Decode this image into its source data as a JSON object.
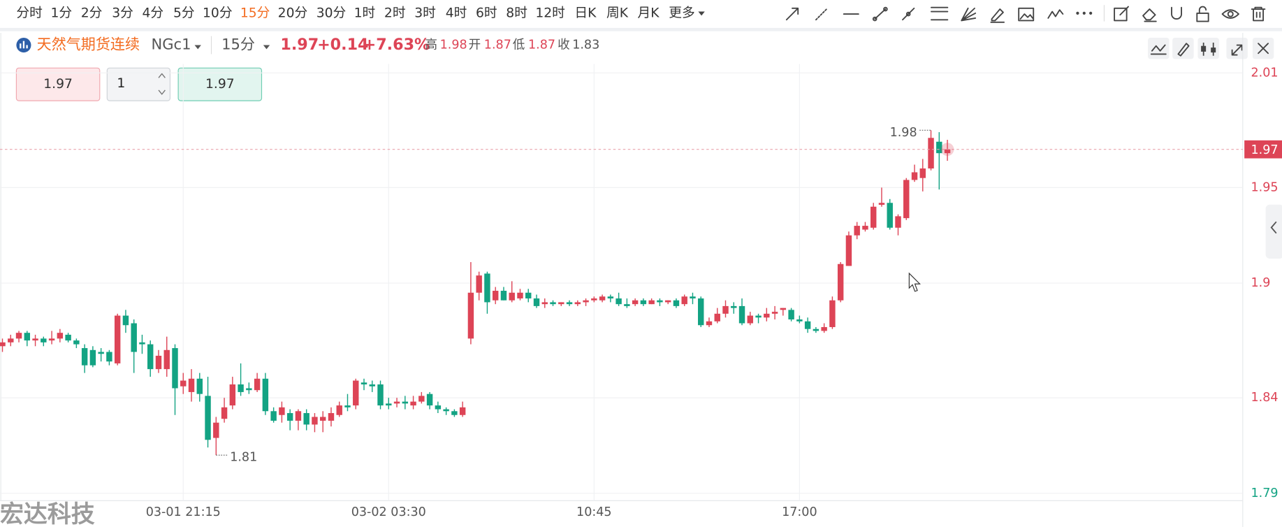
{
  "toolbar": {
    "intervals": [
      {
        "label": "分时"
      },
      {
        "label": "1分"
      },
      {
        "label": "2分"
      },
      {
        "label": "3分"
      },
      {
        "label": "4分"
      },
      {
        "label": "5分"
      },
      {
        "label": "10分"
      },
      {
        "label": "15分",
        "selected": true
      },
      {
        "label": "20分"
      },
      {
        "label": "30分"
      },
      {
        "label": "1时"
      },
      {
        "label": "2时"
      },
      {
        "label": "3时"
      },
      {
        "label": "4时"
      },
      {
        "label": "6时"
      },
      {
        "label": "8时"
      },
      {
        "label": "12时"
      },
      {
        "label": "日K"
      },
      {
        "label": "周K"
      },
      {
        "label": "月K"
      },
      {
        "label": "更多"
      }
    ]
  },
  "header": {
    "name": "天然气期货连续",
    "symbol": "NGc1",
    "timeframe": "15分",
    "price": 1.97,
    "change": "+0.14",
    "change_pct": "+7.63%",
    "stats": [
      {
        "label": "高",
        "value": 1.98
      },
      {
        "label": "开",
        "value": 1.87
      },
      {
        "label": "低",
        "value": 1.87
      },
      {
        "label": "收",
        "value": 1.83
      }
    ]
  },
  "order": {
    "sell_price": 1.97,
    "quantity": 1,
    "buy_price": 1.97
  },
  "watermark": "宏达科技",
  "chart_data": {
    "type": "candlestick",
    "up_color": "#dd4456",
    "down_color": "#13a383",
    "ylim": [
      1.79,
      2.01
    ],
    "yticks": [
      2.01,
      1.95,
      1.9,
      1.84,
      1.79
    ],
    "grid": true,
    "categories": [
      null,
      null,
      null,
      null,
      null,
      null,
      null,
      null,
      null,
      null,
      null,
      null,
      null,
      null,
      null,
      null,
      null,
      null,
      null,
      null,
      null,
      null,
      "03-01 21:15",
      null,
      null,
      null,
      null,
      null,
      null,
      null,
      null,
      null,
      null,
      null,
      null,
      null,
      null,
      null,
      null,
      null,
      null,
      null,
      null,
      null,
      null,
      null,
      null,
      "03-02 03:30",
      null,
      null,
      null,
      null,
      null,
      null,
      null,
      null,
      null,
      null,
      null,
      null,
      null,
      null,
      null,
      null,
      null,
      null,
      null,
      null,
      null,
      null,
      null,
      null,
      "10:45",
      null,
      null,
      null,
      null,
      null,
      null,
      null,
      null,
      null,
      null,
      null,
      null,
      null,
      null,
      null,
      null,
      null,
      null,
      null,
      null,
      null,
      null,
      null,
      null,
      "17:00",
      null,
      null,
      null,
      null,
      null,
      null,
      null,
      null,
      null,
      null,
      null,
      null,
      null,
      null,
      null,
      null,
      null,
      null
    ],
    "open": [
      1.867,
      1.869,
      1.871,
      1.874,
      1.87,
      1.871,
      1.87,
      1.871,
      1.873,
      1.87,
      1.866,
      1.865,
      1.864,
      1.864,
      1.858,
      1.883,
      1.879,
      1.869,
      1.868,
      1.855,
      1.855,
      1.866,
      1.846,
      1.843,
      1.85,
      1.841,
      1.819,
      1.829,
      1.836,
      1.847,
      1.845,
      1.844,
      1.85,
      1.833,
      1.831,
      1.832,
      1.828,
      1.832,
      1.826,
      1.828,
      1.828,
      1.831,
      1.836,
      1.836,
      1.848,
      1.847,
      1.847,
      1.837,
      1.837,
      1.838,
      1.836,
      1.838,
      1.842,
      1.836,
      1.834,
      1.833,
      1.831,
      1.871,
      1.895,
      1.905,
      1.891,
      1.896,
      1.891,
      1.892,
      1.895,
      1.892,
      1.889,
      1.89,
      1.889,
      1.89,
      1.889,
      1.89,
      1.891,
      1.891,
      1.893,
      1.892,
      1.889,
      1.889,
      1.891,
      1.889,
      1.891,
      1.89,
      1.891,
      1.889,
      1.893,
      1.892,
      1.878,
      1.88,
      1.884,
      1.888,
      1.888,
      1.879,
      1.883,
      1.882,
      1.884,
      1.886,
      1.886,
      1.881,
      1.88,
      1.876,
      1.875,
      1.877,
      1.891,
      1.909,
      1.925,
      1.928,
      1.929,
      1.941,
      1.942,
      1.929,
      1.934,
      1.954,
      1.955,
      1.96,
      1.974,
      1.968
    ],
    "high": [
      1.871,
      1.873,
      1.875,
      1.875,
      1.873,
      1.872,
      1.875,
      1.876,
      1.874,
      1.871,
      1.868,
      1.867,
      1.866,
      1.865,
      1.884,
      1.886,
      1.881,
      1.873,
      1.87,
      1.865,
      1.872,
      1.868,
      1.853,
      1.855,
      1.853,
      1.851,
      1.83,
      1.84,
      1.851,
      1.858,
      1.848,
      1.853,
      1.853,
      1.835,
      1.838,
      1.834,
      1.834,
      1.834,
      1.832,
      1.833,
      1.835,
      1.838,
      1.842,
      1.85,
      1.85,
      1.849,
      1.849,
      1.84,
      1.84,
      1.841,
      1.841,
      1.843,
      1.843,
      1.838,
      1.835,
      1.834,
      1.838,
      1.911,
      1.906,
      1.906,
      1.898,
      1.898,
      1.901,
      1.897,
      1.897,
      1.894,
      1.892,
      1.891,
      1.89,
      1.891,
      1.891,
      1.892,
      1.893,
      1.894,
      1.894,
      1.895,
      1.892,
      1.892,
      1.892,
      1.892,
      1.892,
      1.891,
      1.892,
      1.894,
      1.895,
      1.893,
      1.882,
      1.887,
      1.891,
      1.89,
      1.892,
      1.885,
      1.884,
      1.887,
      1.888,
      1.887,
      1.887,
      1.883,
      1.882,
      1.877,
      1.879,
      1.893,
      1.911,
      1.927,
      1.932,
      1.932,
      1.942,
      1.95,
      1.944,
      1.936,
      1.955,
      1.962,
      1.965,
      1.98,
      1.979,
      1.975
    ],
    "low": [
      1.864,
      1.867,
      1.869,
      1.867,
      1.867,
      1.867,
      1.868,
      1.869,
      1.869,
      1.866,
      1.853,
      1.856,
      1.859,
      1.857,
      1.857,
      1.874,
      1.853,
      1.863,
      1.851,
      1.853,
      1.851,
      1.831,
      1.842,
      1.838,
      1.838,
      1.814,
      1.81,
      1.827,
      1.834,
      1.841,
      1.842,
      1.843,
      1.831,
      1.827,
      1.827,
      1.823,
      1.823,
      1.823,
      1.822,
      1.822,
      1.825,
      1.83,
      1.833,
      1.834,
      1.844,
      1.843,
      1.834,
      1.834,
      1.835,
      1.834,
      1.834,
      1.837,
      1.834,
      1.832,
      1.831,
      1.83,
      1.83,
      1.868,
      1.891,
      1.884,
      1.889,
      1.891,
      1.89,
      1.891,
      1.89,
      1.887,
      1.887,
      1.888,
      1.888,
      1.888,
      1.888,
      1.888,
      1.89,
      1.89,
      1.89,
      1.888,
      1.887,
      1.888,
      1.888,
      1.889,
      1.888,
      1.889,
      1.887,
      1.888,
      1.889,
      1.877,
      1.877,
      1.879,
      1.882,
      1.884,
      1.878,
      1.878,
      1.879,
      1.88,
      1.881,
      1.883,
      1.88,
      1.879,
      1.874,
      1.874,
      1.874,
      1.876,
      1.89,
      1.909,
      1.923,
      1.927,
      1.928,
      1.94,
      1.928,
      1.925,
      1.933,
      1.953,
      1.948,
      1.959,
      1.949,
      1.964
    ],
    "close": [
      1.869,
      1.871,
      1.874,
      1.87,
      1.871,
      1.869,
      1.871,
      1.874,
      1.87,
      1.868,
      1.857,
      1.857,
      1.863,
      1.859,
      1.883,
      1.878,
      1.864,
      1.868,
      1.855,
      1.862,
      1.865,
      1.845,
      1.849,
      1.85,
      1.842,
      1.818,
      1.827,
      1.835,
      1.847,
      1.843,
      1.844,
      1.85,
      1.833,
      1.828,
      1.835,
      1.828,
      1.833,
      1.826,
      1.83,
      1.83,
      1.832,
      1.836,
      1.835,
      1.849,
      1.847,
      1.846,
      1.836,
      1.836,
      1.838,
      1.837,
      1.838,
      1.841,
      1.836,
      1.834,
      1.833,
      1.831,
      1.835,
      1.895,
      1.904,
      1.89,
      1.896,
      1.891,
      1.895,
      1.895,
      1.892,
      1.888,
      1.89,
      1.889,
      1.89,
      1.889,
      1.89,
      1.891,
      1.892,
      1.893,
      1.892,
      1.889,
      1.888,
      1.891,
      1.889,
      1.891,
      1.89,
      1.891,
      1.888,
      1.893,
      1.892,
      1.878,
      1.88,
      1.884,
      1.888,
      1.887,
      1.879,
      1.883,
      1.882,
      1.884,
      1.885,
      1.887,
      1.881,
      1.88,
      1.876,
      1.875,
      1.877,
      1.891,
      1.91,
      1.925,
      1.93,
      1.93,
      1.94,
      1.942,
      1.929,
      1.935,
      1.954,
      1.958,
      1.96,
      1.976,
      1.968,
      1.97
    ]
  }
}
